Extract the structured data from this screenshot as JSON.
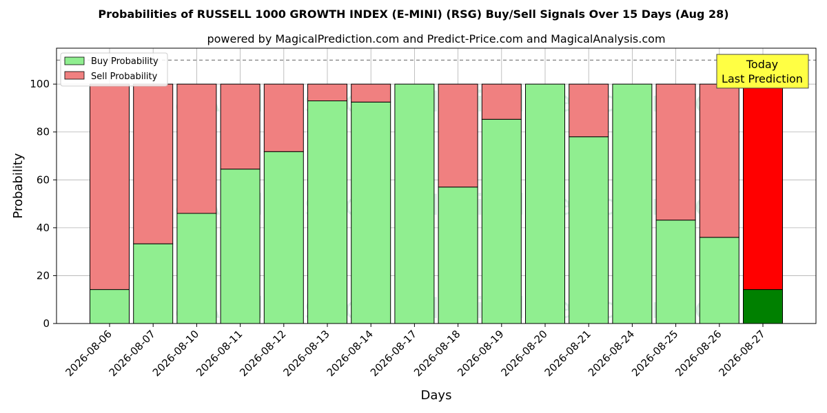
{
  "chart_data": {
    "type": "bar",
    "stacked": true,
    "title": "Probabilities of RUSSELL 1000 GROWTH INDEX (E-MINI) (RSG) Buy/Sell Signals Over 15 Days (Aug 28)",
    "subtitle": "powered by MagicalPrediction.com and Predict-Price.com and MagicalAnalysis.com",
    "xlabel": "Days",
    "ylabel": "Probability",
    "ylim": [
      0,
      115
    ],
    "yticks": [
      "0",
      "20",
      "40",
      "60",
      "80",
      "100"
    ],
    "grid": true,
    "legend_position": "top-left",
    "reference_line": 110,
    "categories": [
      "2026-08-06",
      "2026-08-07",
      "2026-08-10",
      "2026-08-11",
      "2026-08-12",
      "2026-08-13",
      "2026-08-14",
      "2026-08-17",
      "2026-08-18",
      "2026-08-19",
      "2026-08-20",
      "2026-08-21",
      "2026-08-24",
      "2026-08-25",
      "2026-08-26",
      "2026-08-27"
    ],
    "series": [
      {
        "name": "Buy Probability",
        "color": "#90ee90",
        "highlight_color": "#008000",
        "values": [
          14.2,
          33.3,
          46.0,
          64.5,
          71.8,
          93.0,
          92.5,
          100.0,
          57.0,
          85.3,
          100.0,
          78.0,
          100.0,
          43.2,
          36.0,
          14.2
        ]
      },
      {
        "name": "Sell Probability",
        "color": "#f08080",
        "highlight_color": "#ff0000",
        "values": [
          85.8,
          66.7,
          54.0,
          35.5,
          28.2,
          7.0,
          7.5,
          0.0,
          43.0,
          14.7,
          0.0,
          22.0,
          0.0,
          56.8,
          64.0,
          85.8
        ]
      }
    ],
    "highlight_index": 15,
    "annotation": {
      "line1": "Today",
      "line2": "Last Prediction",
      "bg": "#ffff44"
    },
    "watermarks": [
      "MagicalAnalysis.com",
      "MagicalPrediction.com"
    ]
  }
}
